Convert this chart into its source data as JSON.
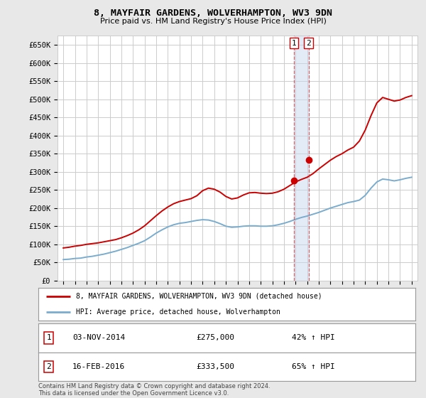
{
  "title": "8, MAYFAIR GARDENS, WOLVERHAMPTON, WV3 9DN",
  "subtitle": "Price paid vs. HM Land Registry's House Price Index (HPI)",
  "ylim": [
    0,
    675000
  ],
  "yticks": [
    0,
    50000,
    100000,
    150000,
    200000,
    250000,
    300000,
    350000,
    400000,
    450000,
    500000,
    550000,
    600000,
    650000
  ],
  "ytick_labels": [
    "£0",
    "£50K",
    "£100K",
    "£150K",
    "£200K",
    "£250K",
    "£300K",
    "£350K",
    "£400K",
    "£450K",
    "£500K",
    "£550K",
    "£600K",
    "£650K"
  ],
  "xlim_start": 1994.5,
  "xlim_end": 2025.5,
  "background_color": "#e8e8e8",
  "plot_bg_color": "#ffffff",
  "grid_color": "#cccccc",
  "red_line_color": "#cc0000",
  "blue_line_color": "#7aacce",
  "transaction1": {
    "date_str": "03-NOV-2014",
    "date_num": 2014.84,
    "price": 275000,
    "pct": "42%",
    "label": "1"
  },
  "transaction2": {
    "date_str": "16-FEB-2016",
    "date_num": 2016.12,
    "price": 333500,
    "pct": "65%",
    "label": "2"
  },
  "legend_label_red": "8, MAYFAIR GARDENS, WOLVERHAMPTON, WV3 9DN (detached house)",
  "legend_label_blue": "HPI: Average price, detached house, Wolverhampton",
  "footer": "Contains HM Land Registry data © Crown copyright and database right 2024.\nThis data is licensed under the Open Government Licence v3.0.",
  "hpi_years": [
    1995.0,
    1995.5,
    1996.0,
    1996.5,
    1997.0,
    1997.5,
    1998.0,
    1998.5,
    1999.0,
    1999.5,
    2000.0,
    2000.5,
    2001.0,
    2001.5,
    2002.0,
    2002.5,
    2003.0,
    2003.5,
    2004.0,
    2004.5,
    2005.0,
    2005.5,
    2006.0,
    2006.5,
    2007.0,
    2007.5,
    2008.0,
    2008.5,
    2009.0,
    2009.5,
    2010.0,
    2010.5,
    2011.0,
    2011.5,
    2012.0,
    2012.5,
    2013.0,
    2013.5,
    2014.0,
    2014.5,
    2015.0,
    2015.5,
    2016.0,
    2016.5,
    2017.0,
    2017.5,
    2018.0,
    2018.5,
    2019.0,
    2019.5,
    2020.0,
    2020.5,
    2021.0,
    2021.5,
    2022.0,
    2022.5,
    2023.0,
    2023.5,
    2024.0,
    2024.5,
    2025.0
  ],
  "hpi_values": [
    58000,
    59000,
    61000,
    62000,
    65000,
    67000,
    70000,
    73000,
    77000,
    81000,
    86000,
    91000,
    97000,
    103000,
    110000,
    120000,
    131000,
    140000,
    148000,
    154000,
    158000,
    160000,
    163000,
    166000,
    168000,
    167000,
    163000,
    157000,
    150000,
    147000,
    148000,
    150000,
    151000,
    151000,
    150000,
    150000,
    151000,
    154000,
    158000,
    163000,
    169000,
    174000,
    178000,
    183000,
    188000,
    194000,
    200000,
    205000,
    210000,
    215000,
    218000,
    222000,
    235000,
    255000,
    272000,
    280000,
    278000,
    275000,
    278000,
    282000,
    285000
  ],
  "red_years": [
    1995.0,
    1995.5,
    1996.0,
    1996.5,
    1997.0,
    1997.5,
    1998.0,
    1998.5,
    1999.0,
    1999.5,
    2000.0,
    2000.5,
    2001.0,
    2001.5,
    2002.0,
    2002.5,
    2003.0,
    2003.5,
    2004.0,
    2004.5,
    2005.0,
    2005.5,
    2006.0,
    2006.5,
    2007.0,
    2007.5,
    2008.0,
    2008.5,
    2009.0,
    2009.5,
    2010.0,
    2010.5,
    2011.0,
    2011.5,
    2012.0,
    2012.5,
    2013.0,
    2013.5,
    2014.0,
    2014.5,
    2015.0,
    2015.5,
    2016.0,
    2016.5,
    2017.0,
    2017.5,
    2018.0,
    2018.5,
    2019.0,
    2019.5,
    2020.0,
    2020.5,
    2021.0,
    2021.5,
    2022.0,
    2022.5,
    2023.0,
    2023.5,
    2024.0,
    2024.5,
    2025.0
  ],
  "red_values": [
    90000,
    92000,
    95000,
    97000,
    100000,
    102000,
    104000,
    107000,
    110000,
    113000,
    118000,
    124000,
    131000,
    140000,
    151000,
    165000,
    179000,
    192000,
    203000,
    212000,
    218000,
    222000,
    226000,
    234000,
    248000,
    255000,
    252000,
    244000,
    232000,
    225000,
    228000,
    236000,
    242000,
    243000,
    241000,
    240000,
    241000,
    245000,
    252000,
    262000,
    272000,
    279000,
    285000,
    295000,
    308000,
    320000,
    332000,
    342000,
    350000,
    360000,
    368000,
    385000,
    415000,
    455000,
    490000,
    505000,
    500000,
    495000,
    498000,
    505000,
    510000
  ]
}
